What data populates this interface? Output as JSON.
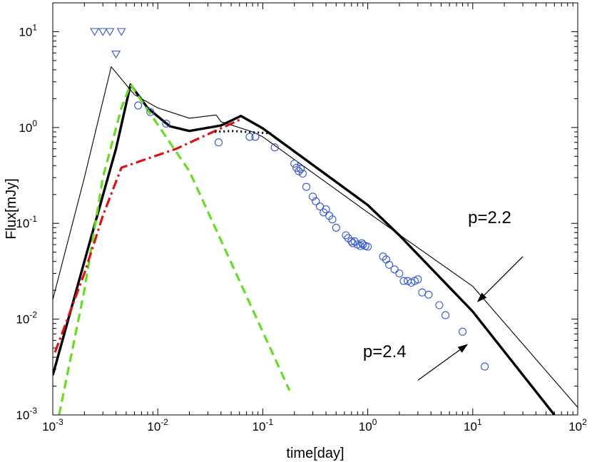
{
  "chart_data": {
    "type": "line",
    "x_scale": "log",
    "y_scale": "log",
    "xlabel": "time[day]",
    "ylabel": "Flux[mJy]",
    "xlim": [
      0.001,
      100
    ],
    "ylim": [
      0.001,
      20
    ],
    "x_ticks": [
      {
        "value": 0.001,
        "base": "10",
        "exp": "-3"
      },
      {
        "value": 0.01,
        "base": "10",
        "exp": "-2"
      },
      {
        "value": 0.1,
        "base": "10",
        "exp": "-1"
      },
      {
        "value": 1,
        "base": "10",
        "exp": "0"
      },
      {
        "value": 10,
        "base": "10",
        "exp": "1"
      },
      {
        "value": 100,
        "base": "10",
        "exp": "2"
      }
    ],
    "y_ticks": [
      {
        "value": 0.001,
        "base": "10",
        "exp": "-3"
      },
      {
        "value": 0.01,
        "base": "10",
        "exp": "-2"
      },
      {
        "value": 0.1,
        "base": "10",
        "exp": "-1"
      },
      {
        "value": 1,
        "base": "10",
        "exp": "0"
      },
      {
        "value": 10,
        "base": "10",
        "exp": "1"
      }
    ],
    "annotations": [
      {
        "text": "p=2.2",
        "x": 9,
        "y": 0.1,
        "arrow_from": [
          30,
          0.045
        ],
        "arrow_to": [
          11,
          0.015
        ]
      },
      {
        "text": "p=2.4",
        "x": 0.9,
        "y": 0.004,
        "arrow_from": [
          3,
          0.0023
        ],
        "arrow_to": [
          9,
          0.0055
        ]
      }
    ],
    "series": [
      {
        "name": "thin-model-p2.2",
        "style": "thin-solid",
        "color": "#000000",
        "points": [
          [
            0.001,
            0.016
          ],
          [
            0.002,
            0.3
          ],
          [
            0.0036,
            4.3
          ],
          [
            0.006,
            2.2
          ],
          [
            0.01,
            1.6
          ],
          [
            0.02,
            1.25
          ],
          [
            0.036,
            1.35
          ],
          [
            0.04,
            1.15
          ],
          [
            0.08,
            0.9
          ],
          [
            0.1,
            0.8
          ],
          [
            1,
            0.13
          ],
          [
            10,
            0.022
          ],
          [
            100,
            0.0012
          ]
        ]
      },
      {
        "name": "thick-model-p2.4",
        "style": "thick-solid",
        "color": "#000000",
        "points": [
          [
            0.001,
            0.0026
          ],
          [
            0.002,
            0.04
          ],
          [
            0.004,
            0.6
          ],
          [
            0.0055,
            2.8
          ],
          [
            0.008,
            1.6
          ],
          [
            0.013,
            1.03
          ],
          [
            0.02,
            0.92
          ],
          [
            0.04,
            1.05
          ],
          [
            0.062,
            1.32
          ],
          [
            0.1,
            0.98
          ],
          [
            1,
            0.155
          ],
          [
            2,
            0.075
          ],
          [
            10,
            0.012
          ],
          [
            60,
            0.001
          ]
        ]
      },
      {
        "name": "green-dashed",
        "style": "dashed",
        "color": "#66dd22",
        "points": [
          [
            0.00115,
            0.001
          ],
          [
            0.002,
            0.02
          ],
          [
            0.003,
            0.3
          ],
          [
            0.0045,
            1.6
          ],
          [
            0.0055,
            2.8
          ],
          [
            0.02,
            0.35
          ],
          [
            0.18,
            0.0018
          ]
        ]
      },
      {
        "name": "red-dashdot",
        "style": "dashdot",
        "color": "#dd1111",
        "points": [
          [
            0.00105,
            0.0045
          ],
          [
            0.002,
            0.03
          ],
          [
            0.003,
            0.12
          ],
          [
            0.0045,
            0.38
          ],
          [
            0.007,
            0.45
          ],
          [
            0.015,
            0.6
          ],
          [
            0.03,
            0.85
          ],
          [
            0.06,
            1.2
          ]
        ]
      },
      {
        "name": "black-dotted",
        "style": "dotted",
        "color": "#000000",
        "points": [
          [
            0.035,
            0.9
          ],
          [
            0.05,
            0.92
          ],
          [
            0.07,
            0.9
          ],
          [
            0.1,
            0.88
          ],
          [
            0.12,
            0.87
          ]
        ]
      }
    ],
    "upper_limits": [
      [
        0.0025,
        10
      ],
      [
        0.003,
        10
      ],
      [
        0.0035,
        10
      ],
      [
        0.0045,
        10
      ],
      [
        0.004,
        5.8
      ]
    ],
    "observations": [
      [
        0.0065,
        1.7
      ],
      [
        0.0085,
        1.45
      ],
      [
        0.012,
        1.1
      ],
      [
        0.038,
        0.7
      ],
      [
        0.075,
        0.8
      ],
      [
        0.085,
        0.8
      ],
      [
        0.13,
        0.62
      ],
      [
        0.2,
        0.42
      ],
      [
        0.21,
        0.38
      ],
      [
        0.22,
        0.35
      ],
      [
        0.23,
        0.37
      ],
      [
        0.24,
        0.33
      ],
      [
        0.26,
        0.24
      ],
      [
        0.3,
        0.19
      ],
      [
        0.32,
        0.17
      ],
      [
        0.35,
        0.15
      ],
      [
        0.38,
        0.13
      ],
      [
        0.4,
        0.14
      ],
      [
        0.43,
        0.12
      ],
      [
        0.46,
        0.11
      ],
      [
        0.5,
        0.09
      ],
      [
        0.62,
        0.075
      ],
      [
        0.65,
        0.07
      ],
      [
        0.7,
        0.065
      ],
      [
        0.72,
        0.062
      ],
      [
        0.75,
        0.065
      ],
      [
        0.8,
        0.06
      ],
      [
        0.85,
        0.058
      ],
      [
        0.88,
        0.062
      ],
      [
        0.9,
        0.06
      ],
      [
        0.95,
        0.058
      ],
      [
        1.0,
        0.057
      ],
      [
        1.4,
        0.045
      ],
      [
        1.5,
        0.042
      ],
      [
        1.6,
        0.037
      ],
      [
        1.8,
        0.033
      ],
      [
        2.0,
        0.03
      ],
      [
        2.2,
        0.025
      ],
      [
        2.4,
        0.025
      ],
      [
        2.6,
        0.024
      ],
      [
        2.8,
        0.025
      ],
      [
        3.0,
        0.026
      ],
      [
        3.3,
        0.019
      ],
      [
        3.8,
        0.018
      ],
      [
        4.8,
        0.014
      ],
      [
        5.5,
        0.011
      ],
      [
        8.0,
        0.0074
      ],
      [
        13.0,
        0.0032
      ]
    ]
  }
}
